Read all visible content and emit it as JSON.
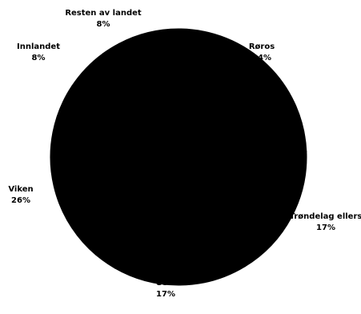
{
  "chart_data": {
    "type": "pie",
    "title": "",
    "slices": [
      {
        "label": "Røros",
        "value": 24,
        "value_text": "24%"
      },
      {
        "label": "Trøndelag ellers",
        "value": 17,
        "value_text": "17%"
      },
      {
        "label": "Oslo",
        "value": 17,
        "value_text": "17%"
      },
      {
        "label": "Viken",
        "value": 26,
        "value_text": "26%"
      },
      {
        "label": "Innlandet",
        "value": 8,
        "value_text": "8%"
      },
      {
        "label": "Resten av landet",
        "value": 8,
        "value_text": "8%"
      }
    ],
    "colors": {
      "slice_fill": "#000000",
      "label_text": "#000000",
      "background": "#ffffff"
    },
    "legend": "none"
  }
}
